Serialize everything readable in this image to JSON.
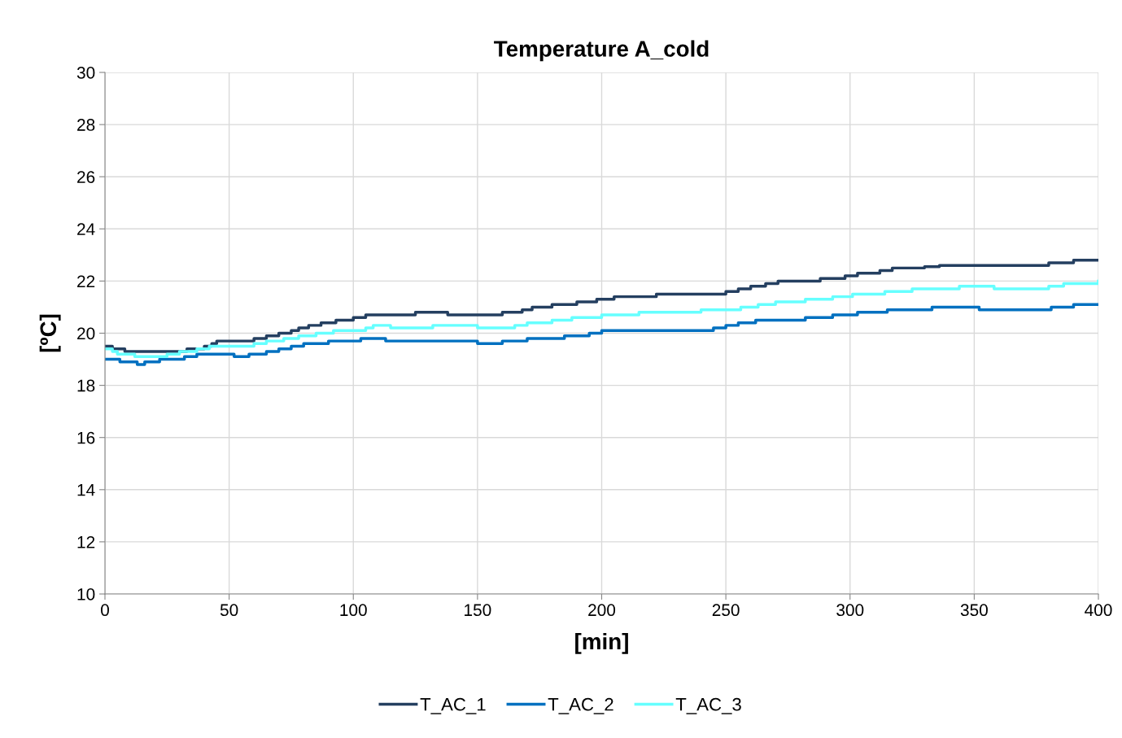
{
  "chart_data": {
    "type": "step",
    "title": "Temperature A_cold",
    "xlabel": "[min]",
    "ylabel": "[ºC]",
    "xlim": [
      0,
      400
    ],
    "xticks": [
      0,
      50,
      100,
      150,
      200,
      250,
      300,
      350,
      400
    ],
    "ylim": [
      10,
      30
    ],
    "yticks": [
      10,
      12,
      14,
      16,
      18,
      20,
      22,
      24,
      26,
      28,
      30
    ],
    "grid": true,
    "legend": "bottom",
    "marker": "none",
    "line_style": "solid",
    "series": [
      {
        "name": "T_AC_1",
        "color": "#243f60",
        "x": [
          0,
          3,
          8,
          33,
          40,
          43,
          45,
          60,
          65,
          70,
          75,
          78,
          82,
          87,
          93,
          100,
          105,
          125,
          138,
          160,
          168,
          172,
          180,
          190,
          198,
          205,
          222,
          250,
          255,
          260,
          266,
          271,
          288,
          298,
          303,
          312,
          317,
          330,
          336,
          380,
          390,
          400
        ],
        "values": [
          19.5,
          19.4,
          19.3,
          19.4,
          19.5,
          19.6,
          19.7,
          19.8,
          19.9,
          20.0,
          20.1,
          20.2,
          20.3,
          20.4,
          20.5,
          20.6,
          20.7,
          20.8,
          20.7,
          20.8,
          20.9,
          21.0,
          21.1,
          21.2,
          21.3,
          21.4,
          21.5,
          21.6,
          21.7,
          21.8,
          21.9,
          22.0,
          22.1,
          22.2,
          22.3,
          22.4,
          22.5,
          22.55,
          22.6,
          22.7,
          22.8,
          22.8
        ]
      },
      {
        "name": "T_AC_2",
        "color": "#0070c0",
        "x": [
          0,
          6,
          13,
          16,
          22,
          32,
          37,
          52,
          58,
          65,
          70,
          75,
          80,
          90,
          103,
          113,
          150,
          160,
          170,
          185,
          195,
          200,
          245,
          250,
          255,
          262,
          282,
          293,
          303,
          315,
          333,
          352,
          381,
          390,
          400
        ],
        "values": [
          19.0,
          18.9,
          18.8,
          18.9,
          19.0,
          19.1,
          19.2,
          19.1,
          19.2,
          19.3,
          19.4,
          19.5,
          19.6,
          19.7,
          19.8,
          19.7,
          19.6,
          19.7,
          19.8,
          19.9,
          20.0,
          20.1,
          20.2,
          20.3,
          20.4,
          20.5,
          20.6,
          20.7,
          20.8,
          20.9,
          21.0,
          20.9,
          21.0,
          21.1,
          21.1
        ]
      },
      {
        "name": "T_AC_3",
        "color": "#66ffff",
        "x": [
          0,
          3,
          5,
          12,
          25,
          30,
          37,
          42,
          60,
          65,
          72,
          78,
          85,
          92,
          105,
          108,
          115,
          132,
          150,
          165,
          170,
          180,
          188,
          200,
          215,
          240,
          256,
          263,
          270,
          282,
          293,
          301,
          314,
          325,
          344,
          358,
          380,
          386,
          400
        ],
        "values": [
          19.4,
          19.3,
          19.2,
          19.1,
          19.2,
          19.3,
          19.4,
          19.5,
          19.6,
          19.7,
          19.8,
          19.9,
          20.0,
          20.1,
          20.2,
          20.3,
          20.2,
          20.3,
          20.2,
          20.3,
          20.4,
          20.5,
          20.6,
          20.7,
          20.8,
          20.9,
          21.0,
          21.1,
          21.2,
          21.3,
          21.4,
          21.5,
          21.6,
          21.7,
          21.8,
          21.7,
          21.8,
          21.9,
          22.0
        ]
      }
    ]
  }
}
